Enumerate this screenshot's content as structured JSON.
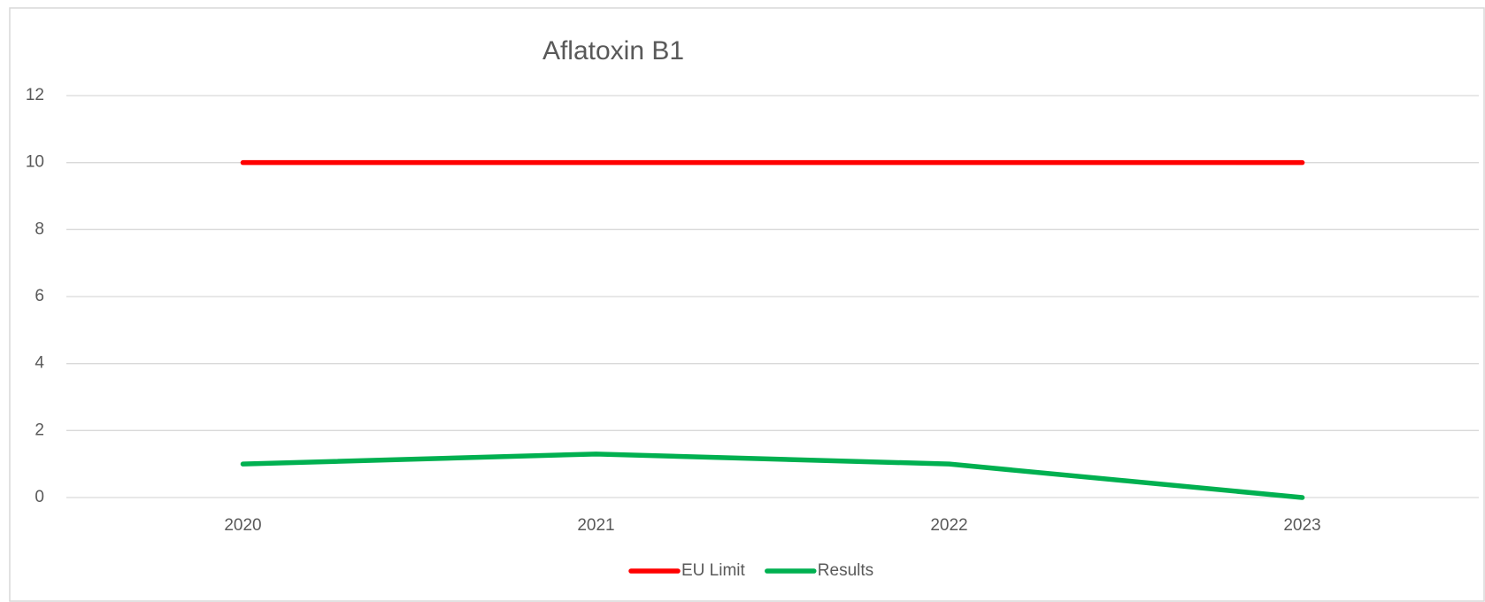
{
  "chart_data": {
    "type": "line",
    "title": "Aflatoxin B1",
    "categories": [
      "2020",
      "2021",
      "2022",
      "2023"
    ],
    "series": [
      {
        "name": "EU Limit",
        "color": "#ff0000",
        "values": [
          10,
          10,
          10,
          10
        ]
      },
      {
        "name": "Results",
        "color": "#00b050",
        "values": [
          1,
          1.3,
          1,
          0
        ]
      }
    ],
    "ylim": [
      0,
      12
    ],
    "yticks": [
      0,
      2,
      4,
      6,
      8,
      10,
      12
    ],
    "grid": true,
    "legend": "bottom"
  }
}
